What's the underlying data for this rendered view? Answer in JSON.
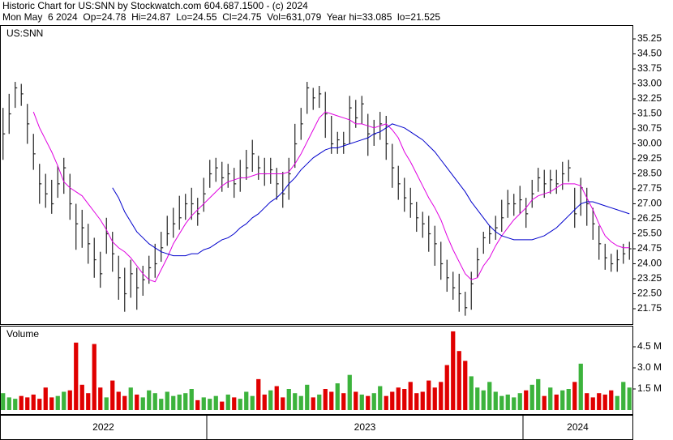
{
  "title": "Historic Chart for US:SNN by Stockwatch.com 604.687.1500 - (c) 2024",
  "subtitle": "Mon May  6 2024  Op=24.78  Hi=24.87  Lo=24.55  Cl=24.75  Vol=631,079  Year hi=33.085  lo=21.525",
  "periods": [
    {
      "label": "2022",
      "weeks": 34
    },
    {
      "label": "2023",
      "weeks": 52
    },
    {
      "label": "2024",
      "weeks": 18
    }
  ],
  "chart_data": [
    {
      "type": "ohlc",
      "label": "US:SNN",
      "color": "#222222",
      "ylim": [
        20.98,
        35.94
      ],
      "yticks": [
        35.25,
        {
          "value": 34.5,
          "label": "34.50"
        },
        33.75,
        {
          "value": 33,
          "label": "33.00"
        },
        32.25,
        {
          "value": 31.5,
          "label": "31.50"
        },
        30.75,
        {
          "value": 30,
          "label": "30.00"
        },
        29.25,
        {
          "value": 28.5,
          "label": "28.50"
        },
        27.75,
        {
          "value": 27,
          "label": "27.00"
        },
        26.25,
        {
          "value": 25.5,
          "label": "25.50"
        },
        24.75,
        {
          "value": 24,
          "label": "24.00"
        },
        23.25,
        {
          "value": 22.5,
          "label": "22.50"
        },
        21.75
      ],
      "high": [
        31.8,
        32.5,
        33.1,
        33,
        32,
        30.5,
        29,
        28.5,
        28.2,
        28.9,
        29.3,
        28.5,
        27,
        26.7,
        26,
        25.3,
        24.6,
        26.3,
        25.6,
        24.4,
        23.8,
        24.2,
        23.8,
        23.9,
        24.4,
        25,
        25.6,
        26.4,
        26.8,
        27.4,
        27.5,
        27.8,
        27.3,
        28.3,
        29.2,
        29.3,
        29.1,
        29,
        28.8,
        29.2,
        29.7,
        30.2,
        29.4,
        29.3,
        29.3,
        28.8,
        28.6,
        29.3,
        31,
        31.8,
        33.1,
        32.8,
        32.9,
        32.6,
        31.4,
        30.6,
        30.6,
        32.4,
        32.2,
        32.4,
        31.5,
        31.2,
        31.6,
        31.4,
        30,
        28.9,
        28.3,
        27.8,
        27.1,
        26.6,
        26.4,
        25.9,
        25.1,
        24.2,
        23.6,
        23.5,
        22.6,
        23.6,
        24.8,
        25.6,
        25.9,
        26.4,
        27.2,
        27.7,
        27.5,
        27.9,
        27.3,
        28.2,
        28.8,
        28.7,
        28.7,
        28.7,
        29.1,
        29.2,
        27.8,
        28.3,
        27.8,
        26.8,
        25.9,
        25,
        24.5,
        24.7,
        25,
        25.1
      ],
      "low": [
        29.2,
        30.5,
        31.8,
        31.9,
        30,
        28.7,
        27,
        26.8,
        26.5,
        27.3,
        27.5,
        26.2,
        24.7,
        24.8,
        24,
        23.3,
        22.8,
        24.5,
        23.6,
        22.2,
        21.6,
        22.3,
        21.7,
        22.4,
        23,
        23.3,
        24.1,
        24.9,
        25.3,
        25.7,
        26.2,
        26.2,
        25.9,
        26.6,
        27.8,
        28.1,
        27.6,
        27.8,
        27.3,
        27.6,
        28.2,
        28.6,
        28.2,
        27.9,
        28,
        27.2,
        26.8,
        27.2,
        28.8,
        30.2,
        31.5,
        31.7,
        31.8,
        30.3,
        29.5,
        29.5,
        29.5,
        30,
        30.8,
        31,
        29.4,
        29.9,
        30.2,
        29.2,
        27.8,
        27.2,
        26.6,
        26.3,
        25.6,
        25.3,
        24.6,
        23.9,
        23.2,
        22.6,
        22.2,
        21.6,
        21.4,
        21.7,
        23.3,
        24.5,
        25,
        25.2,
        25.6,
        26.3,
        26.4,
        26.5,
        25.8,
        26.8,
        27.6,
        27.3,
        27.5,
        27.5,
        27.7,
        28.1,
        25.8,
        26.4,
        25.9,
        25.2,
        24.2,
        23.7,
        23.6,
        23.6,
        24,
        24.2
      ],
      "close": [
        30.5,
        31.5,
        32.8,
        32.5,
        31,
        29.5,
        28,
        27.5,
        27,
        28,
        28.8,
        27,
        26,
        25.8,
        25,
        24.2,
        23.5,
        25.5,
        24.5,
        23.3,
        22.5,
        23.5,
        22.8,
        23.2,
        23.8,
        24,
        24.8,
        25.5,
        26,
        26.3,
        27,
        27,
        26.5,
        27.5,
        28.5,
        28.8,
        28.3,
        28.5,
        28,
        28.3,
        28.8,
        29.5,
        28.8,
        28.5,
        28.7,
        28,
        27.5,
        28.5,
        30,
        31,
        32.8,
        32.3,
        32.5,
        31.5,
        30,
        30.2,
        30,
        31.8,
        31.3,
        32,
        30.5,
        30.5,
        31,
        30,
        28.8,
        28,
        27.3,
        27,
        26.3,
        26,
        25.5,
        25,
        24,
        23.3,
        22.8,
        22.5,
        21.8,
        23,
        24.2,
        25.3,
        25.5,
        25.8,
        26.3,
        27,
        27,
        27.2,
        26.5,
        27.5,
        28.3,
        28,
        28.2,
        28,
        28.5,
        28.8,
        26.5,
        27.8,
        27,
        26,
        25,
        24.3,
        24,
        24.2,
        24.5,
        24.75
      ],
      "lines": [
        {
          "color": "#e000e0",
          "values": [
            null,
            null,
            null,
            null,
            null,
            31.6,
            30.8,
            30.2,
            29.6,
            28.9,
            28.1,
            27.8,
            27.6,
            27.4,
            27,
            26.6,
            26.2,
            25.7,
            25.1,
            24.8,
            24.6,
            24.3,
            23.9,
            23.5,
            23.2,
            23.1,
            23.7,
            24.3,
            25,
            25.5,
            26,
            26.4,
            26.7,
            27,
            27.3,
            27.6,
            27.9,
            28.1,
            28.2,
            28.3,
            28.3,
            28.4,
            28.5,
            28.5,
            28.5,
            28.5,
            28.5,
            28.6,
            29,
            29.5,
            30.1,
            30.7,
            31.3,
            31.6,
            31.5,
            31.4,
            31.3,
            31.2,
            31,
            31,
            30.9,
            30.8,
            30.9,
            31,
            30.7,
            30.3,
            29.6,
            29.1,
            28.5,
            27.9,
            27.3,
            26.8,
            26.2,
            25.4,
            24.7,
            24.1,
            23.5,
            23.2,
            23.3,
            23.9,
            24.3,
            24.9,
            25.4,
            25.8,
            26.2,
            26.5,
            26.8,
            27.2,
            27.4,
            27.5,
            27.6,
            27.8,
            28,
            28,
            28,
            27.9,
            27.3,
            26.7,
            26,
            25.4,
            25.1,
            24.9,
            24.8,
            24.8
          ]
        },
        {
          "color": "#0000cc",
          "values": [
            null,
            null,
            null,
            null,
            null,
            null,
            null,
            null,
            null,
            null,
            null,
            null,
            null,
            null,
            null,
            null,
            null,
            null,
            27.8,
            27.3,
            26.6,
            26.1,
            25.6,
            25.3,
            25,
            24.8,
            24.6,
            24.5,
            24.4,
            24.4,
            24.4,
            24.5,
            24.5,
            24.7,
            24.8,
            25,
            25.2,
            25.3,
            25.5,
            25.8,
            26,
            26.3,
            26.5,
            26.8,
            27.1,
            27.3,
            27.6,
            28,
            28.3,
            28.7,
            29,
            29.3,
            29.5,
            29.7,
            29.8,
            29.8,
            29.9,
            30,
            30.1,
            30.2,
            30.3,
            30.5,
            30.6,
            30.8,
            31,
            30.9,
            30.8,
            30.6,
            30.4,
            30.2,
            29.9,
            29.6,
            29.2,
            28.8,
            28.4,
            28,
            27.6,
            27.1,
            26.7,
            26.3,
            25.9,
            25.6,
            25.4,
            25.3,
            25.2,
            25.2,
            25.2,
            25.2,
            25.3,
            25.4,
            25.6,
            25.8,
            26.1,
            26.4,
            26.7,
            27,
            27.1,
            27.1,
            27,
            26.9,
            26.8,
            26.7,
            26.6,
            26.5
          ]
        }
      ]
    },
    {
      "type": "volume",
      "label": "Volume",
      "up_color": "#3cb33c",
      "down_color": "#e00000",
      "ylim": [
        0,
        6
      ],
      "yticks": [
        {
          "value": 4.5,
          "label": "4.5 M"
        },
        {
          "value": 3,
          "label": "3.0 M"
        },
        {
          "value": 1.5,
          "label": "1.5 M"
        }
      ],
      "values": [
        1.2,
        0.9,
        0.8,
        1.0,
        0.9,
        1.1,
        0.8,
        1.6,
        0.9,
        1.0,
        1.3,
        1.4,
        4.8,
        1.8,
        1.2,
        4.7,
        1.6,
        0.9,
        2.1,
        1.3,
        1.0,
        1.6,
        1.1,
        0.9,
        1.4,
        1.2,
        0.8,
        1.3,
        1.0,
        1.1,
        1.2,
        1.5,
        0.7,
        0.9,
        0.8,
        1.0,
        0.6,
        1.1,
        0.9,
        0.8,
        1.3,
        1.0,
        2.2,
        1.1,
        1.4,
        1.7,
        0.9,
        1.5,
        1.2,
        1.0,
        1.8,
        0.9,
        1.1,
        1.5,
        1.3,
        1.9,
        1.2,
        2.5,
        1.3,
        1.1,
        1.0,
        1.2,
        1.7,
        1.0,
        1.3,
        1.6,
        1.5,
        2.0,
        1.2,
        1.3,
        2.1,
        1.6,
        2.0,
        3.2,
        5.6,
        4.2,
        3.5,
        2.4,
        1.6,
        1.4,
        2.0,
        1.3,
        1.0,
        1.1,
        0.9,
        1.2,
        1.4,
        1.8,
        2.2,
        1.0,
        1.6,
        1.1,
        1.4,
        1.5,
        2.0,
        3.3,
        1.2,
        0.9,
        1.2,
        1.1,
        1.4,
        1.0,
        2.0,
        1.6
      ]
    }
  ]
}
